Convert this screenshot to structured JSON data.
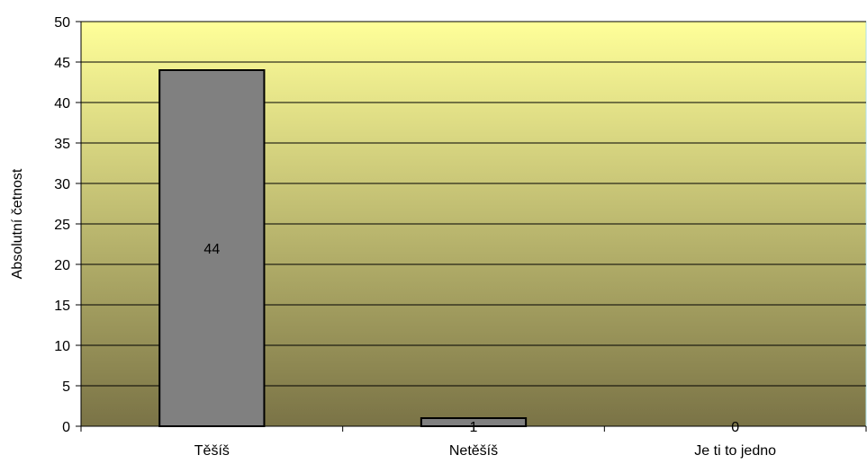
{
  "chart_data": {
    "type": "bar",
    "categories": [
      "Těšíš",
      "Netěšíš",
      "Je ti to jedno"
    ],
    "values": [
      44,
      1,
      0
    ],
    "data_labels": [
      "44",
      "1",
      "0"
    ],
    "ylabel": "Absolutní četnost",
    "xlabel": "",
    "ylim": [
      0,
      50
    ],
    "yticks": [
      0,
      5,
      10,
      15,
      20,
      25,
      30,
      35,
      40,
      45,
      50
    ],
    "grid": true,
    "legend": "none",
    "colors": {
      "bar_fill": "#808080",
      "bar_stroke": "#000000",
      "plot_bg_top": "#ffff99",
      "plot_bg_bottom": "#7a7346",
      "gridline": "#000000",
      "plot_border": "#b0e0e8"
    }
  }
}
